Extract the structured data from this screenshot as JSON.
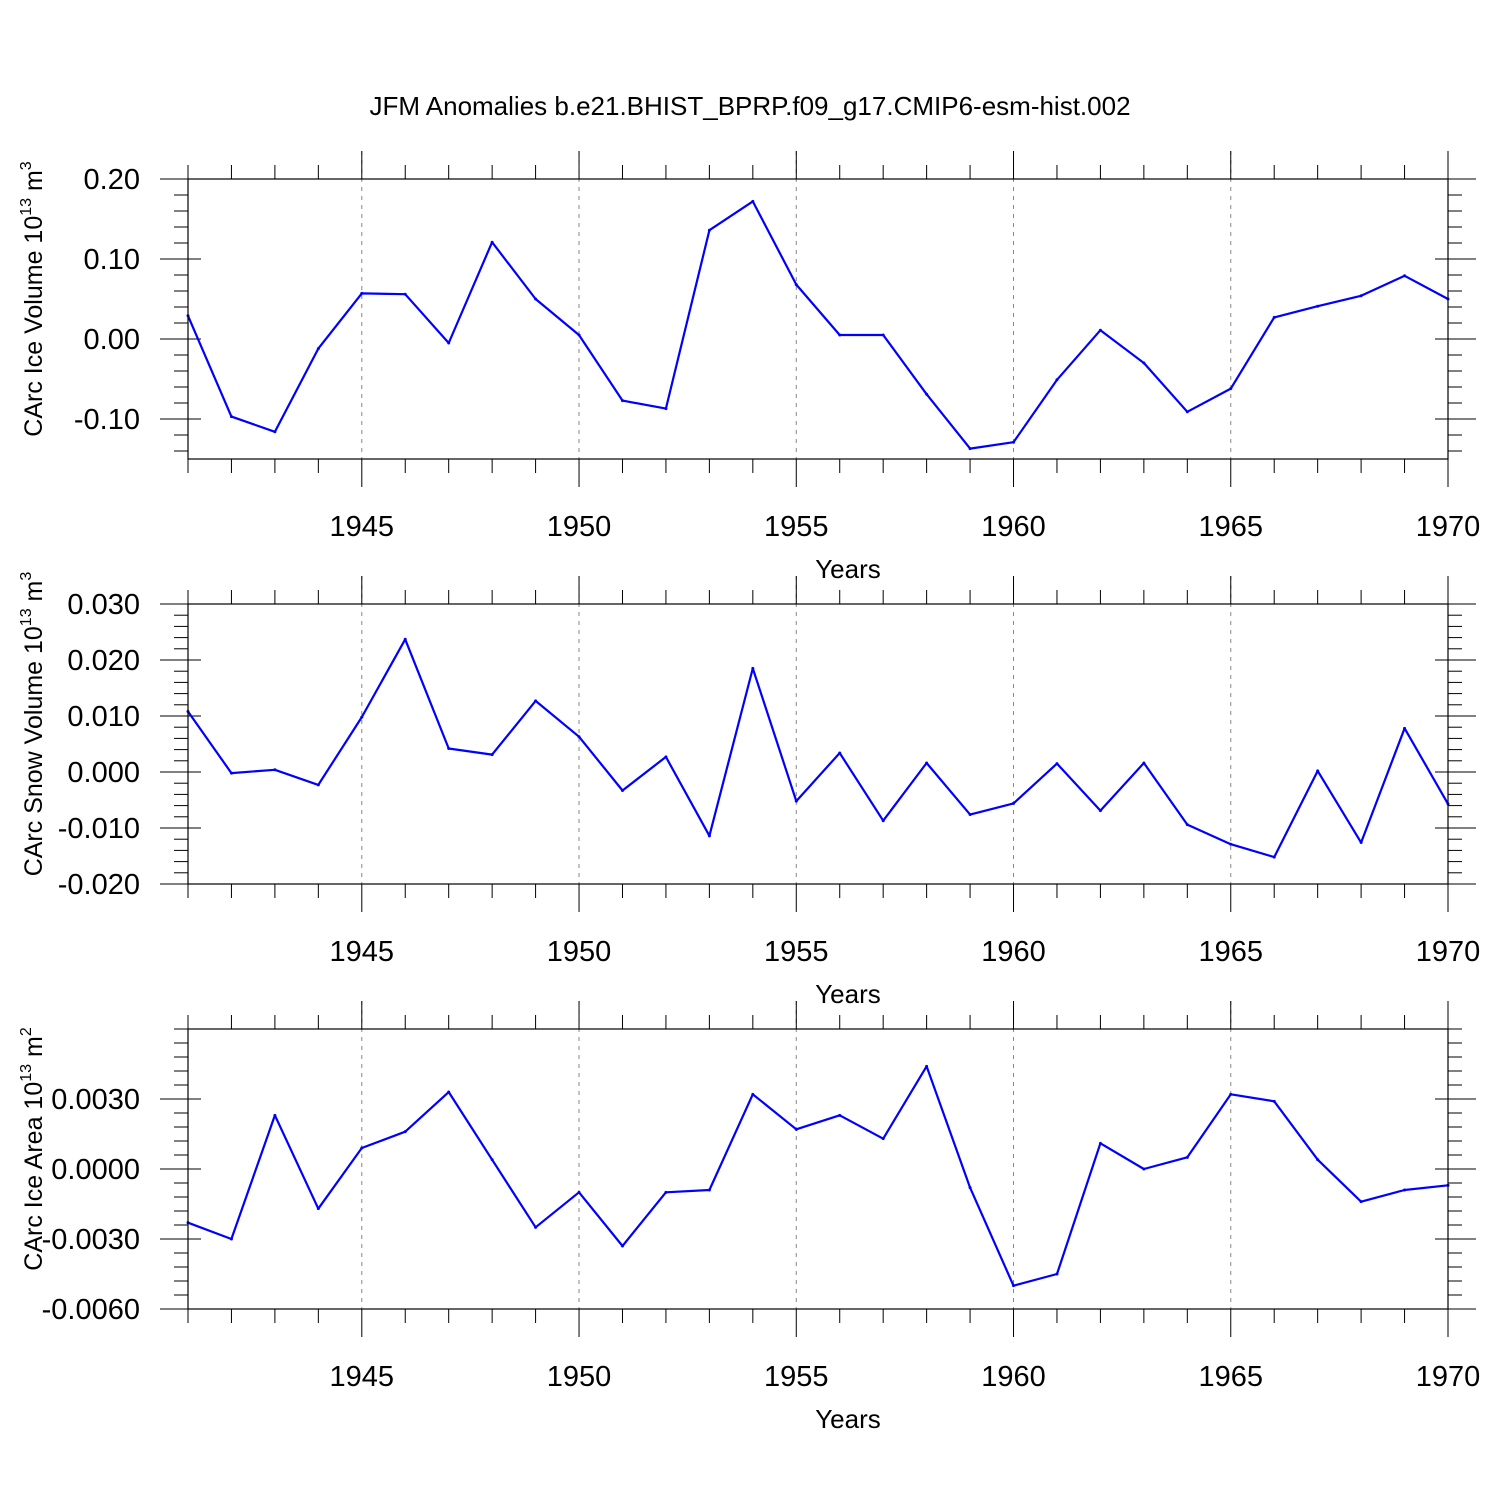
{
  "title": "JFM Anomalies b.e21.BHIST_BPRP.f09_g17.CMIP6-esm-hist.002",
  "chart_data": [
    {
      "type": "line",
      "ylabel": "CArc Ice Volume 10",
      "ylabel_exp": "13",
      "ylabel_unit": " m",
      "ylabel_unit_exp": "3",
      "xlabel": "Years",
      "xlim": [
        1941,
        1970
      ],
      "ylim": [
        -0.15,
        0.2
      ],
      "x_ticks": [
        "1945",
        "1950",
        "1955",
        "1960",
        "1965",
        "1970"
      ],
      "y_ticks": [
        "0.20",
        "0.10",
        "0.00",
        "-0.10"
      ],
      "y_tick_values": [
        0.2,
        0.1,
        0.0,
        -0.1
      ],
      "y_minor_step": 0.02,
      "grid": "vertical dashed at major x ticks",
      "line_color": "#0000ff",
      "x": [
        1941,
        1942,
        1943,
        1944,
        1945,
        1946,
        1947,
        1948,
        1949,
        1950,
        1951,
        1952,
        1953,
        1954,
        1955,
        1956,
        1957,
        1958,
        1959,
        1960,
        1961,
        1962,
        1963,
        1964,
        1965,
        1966,
        1967,
        1968,
        1969,
        1970
      ],
      "y": [
        0.029,
        -0.097,
        -0.116,
        -0.012,
        0.057,
        0.056,
        -0.005,
        0.121,
        0.05,
        0.005,
        -0.077,
        -0.087,
        0.136,
        0.172,
        0.068,
        0.005,
        0.005,
        -0.069,
        -0.137,
        -0.129,
        -0.051,
        0.011,
        -0.03,
        -0.091,
        -0.062,
        0.027,
        0.041,
        0.054,
        0.079,
        0.05
      ]
    },
    {
      "type": "line",
      "ylabel": "CArc Snow Volume 10",
      "ylabel_exp": "13",
      "ylabel_unit": " m",
      "ylabel_unit_exp": "3",
      "xlabel": "Years",
      "xlim": [
        1941,
        1970
      ],
      "ylim": [
        -0.02,
        0.03
      ],
      "x_ticks": [
        "1945",
        "1950",
        "1955",
        "1960",
        "1965",
        "1970"
      ],
      "y_ticks": [
        "0.030",
        "0.020",
        "0.010",
        "0.000",
        "-0.010",
        "-0.020"
      ],
      "y_tick_values": [
        0.03,
        0.02,
        0.01,
        0.0,
        -0.01,
        -0.02
      ],
      "y_minor_step": 0.002,
      "grid": "vertical dashed at major x ticks",
      "line_color": "#0000ff",
      "x": [
        1941,
        1942,
        1943,
        1944,
        1945,
        1946,
        1947,
        1948,
        1949,
        1950,
        1951,
        1952,
        1953,
        1954,
        1955,
        1956,
        1957,
        1958,
        1959,
        1960,
        1961,
        1962,
        1963,
        1964,
        1965,
        1966,
        1967,
        1968,
        1969,
        1970
      ],
      "y": [
        0.0108,
        -0.0002,
        0.0004,
        -0.0023,
        0.0098,
        0.0237,
        0.0042,
        0.0031,
        0.0127,
        0.0063,
        -0.0033,
        0.0027,
        -0.0114,
        0.0185,
        -0.0052,
        0.0034,
        -0.0087,
        0.0016,
        -0.0076,
        -0.0056,
        0.0015,
        -0.0069,
        0.0016,
        -0.0094,
        -0.0129,
        -0.0152,
        0.0002,
        -0.0126,
        0.0078,
        -0.0057
      ]
    },
    {
      "type": "line",
      "ylabel": "CArc Ice Area 10",
      "ylabel_exp": "13",
      "ylabel_unit": " m",
      "ylabel_unit_exp": "2",
      "xlabel": "Years",
      "xlim": [
        1941,
        1970
      ],
      "ylim": [
        -0.006,
        0.006
      ],
      "x_ticks": [
        "1945",
        "1950",
        "1955",
        "1960",
        "1965",
        "1970"
      ],
      "y_ticks": [
        "0.0030",
        "0.0000",
        "-0.0030",
        "-0.0060"
      ],
      "y_tick_values": [
        0.003,
        0.0,
        -0.003,
        -0.006
      ],
      "y_minor_step": 0.0006,
      "grid": "vertical dashed at major x ticks",
      "line_color": "#0000ff",
      "x": [
        1941,
        1942,
        1943,
        1944,
        1945,
        1946,
        1947,
        1948,
        1949,
        1950,
        1951,
        1952,
        1953,
        1954,
        1955,
        1956,
        1957,
        1958,
        1959,
        1960,
        1961,
        1962,
        1963,
        1964,
        1965,
        1966,
        1967,
        1968,
        1969,
        1970
      ],
      "y": [
        -0.0023,
        -0.003,
        0.0023,
        -0.0017,
        0.0009,
        0.0016,
        0.0033,
        0.0004,
        -0.0025,
        -0.001,
        -0.0033,
        -0.001,
        -0.0009,
        0.0032,
        0.0017,
        0.0023,
        0.0013,
        0.0044,
        -0.0008,
        -0.005,
        -0.0045,
        0.0011,
        0.0,
        0.0005,
        0.0032,
        0.0029,
        0.0004,
        -0.0014,
        -0.0009,
        -0.0007
      ]
    }
  ]
}
